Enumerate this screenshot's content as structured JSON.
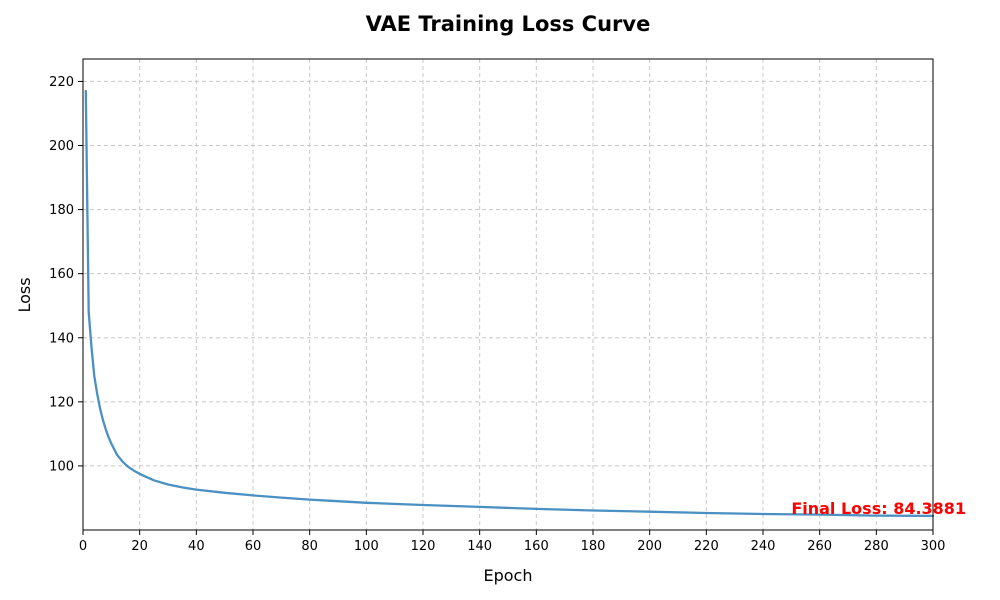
{
  "chart_data": {
    "type": "line",
    "title": "VAE Training Loss Curve",
    "xlabel": "Epoch",
    "ylabel": "Loss",
    "xlim": [
      0,
      300
    ],
    "ylim": [
      80,
      227
    ],
    "grid": true,
    "x_ticks": [
      0,
      20,
      40,
      60,
      80,
      100,
      120,
      140,
      160,
      180,
      200,
      220,
      240,
      260,
      280,
      300
    ],
    "y_ticks": [
      100,
      120,
      140,
      160,
      180,
      200,
      220
    ],
    "series": [
      {
        "name": "Training Loss",
        "color": "#4a90c2",
        "x": [
          1,
          2,
          3,
          4,
          5,
          6,
          7,
          8,
          9,
          10,
          12,
          14,
          16,
          18,
          20,
          25,
          30,
          35,
          40,
          50,
          60,
          70,
          80,
          90,
          100,
          120,
          140,
          160,
          180,
          200,
          220,
          240,
          260,
          280,
          300
        ],
        "y": [
          217,
          148,
          137,
          128,
          122.5,
          118,
          114.5,
          111.5,
          109,
          107,
          103.5,
          101.3,
          99.7,
          98.5,
          97.5,
          95.5,
          94.2,
          93.3,
          92.6,
          91.6,
          90.8,
          90.1,
          89.5,
          89.0,
          88.5,
          87.8,
          87.2,
          86.6,
          86.1,
          85.7,
          85.3,
          85.0,
          84.8,
          84.5,
          84.3881
        ]
      }
    ],
    "annotations": [
      {
        "text": "Final Loss: 84.3881",
        "color": "#ff0000",
        "x": 250,
        "y": 86.8
      }
    ]
  }
}
